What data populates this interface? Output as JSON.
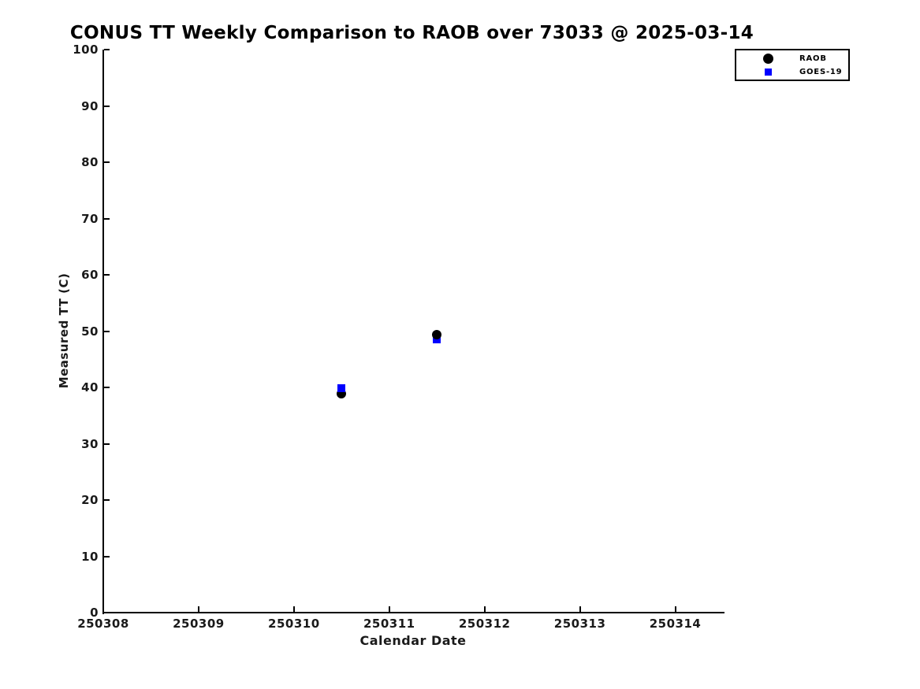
{
  "chart_data": {
    "type": "scatter",
    "title": "CONUS TT Weekly Comparison to RAOB over 73033 @ 2025-03-14",
    "xlabel": "Calendar Date",
    "ylabel": "Measured TT (C)",
    "xlim": [
      250308,
      250314.5
    ],
    "ylim": [
      0,
      100
    ],
    "grid": false,
    "background": "#ffffff",
    "axis_color": "#000000",
    "legend_position": "upper-right",
    "x_ticks": [
      {
        "value": 250308,
        "label": "250308"
      },
      {
        "value": 250309,
        "label": "250309"
      },
      {
        "value": 250310,
        "label": "250310"
      },
      {
        "value": 250311,
        "label": "250311"
      },
      {
        "value": 250312,
        "label": "250312"
      },
      {
        "value": 250313,
        "label": "250313"
      },
      {
        "value": 250314,
        "label": "250314"
      }
    ],
    "y_ticks": [
      {
        "value": 0,
        "label": "0"
      },
      {
        "value": 10,
        "label": "10"
      },
      {
        "value": 20,
        "label": "20"
      },
      {
        "value": 30,
        "label": "30"
      },
      {
        "value": 40,
        "label": "40"
      },
      {
        "value": 50,
        "label": "50"
      },
      {
        "value": 60,
        "label": "60"
      },
      {
        "value": 70,
        "label": "70"
      },
      {
        "value": 80,
        "label": "80"
      },
      {
        "value": 90,
        "label": "90"
      },
      {
        "value": 100,
        "label": "100"
      }
    ],
    "series": [
      {
        "name": "RAOB",
        "marker": "circle",
        "color": "#000000",
        "marker_size": 12,
        "points": [
          {
            "x": 250310.5,
            "y": 38.9
          },
          {
            "x": 250311.5,
            "y": 49.4
          }
        ]
      },
      {
        "name": "GOES-19",
        "marker": "square",
        "color": "#0000ff",
        "marker_size": 10,
        "points": [
          {
            "x": 250310.5,
            "y": 39.8
          },
          {
            "x": 250311.5,
            "y": 48.6
          }
        ]
      }
    ]
  }
}
